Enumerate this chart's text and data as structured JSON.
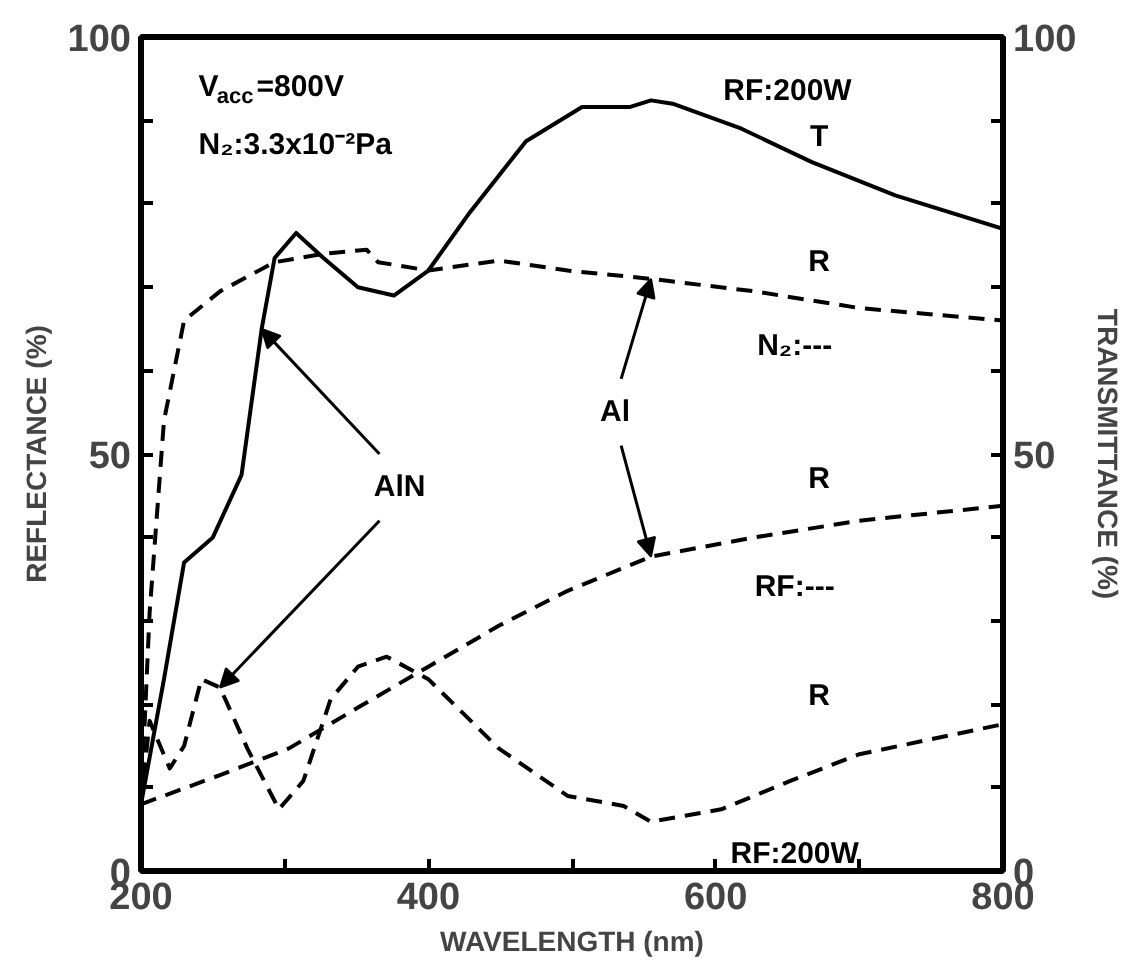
{
  "chart_data": {
    "type": "line",
    "xlabel": "WAVELENGTH (nm)",
    "ylabel": "REFLECTANCE (%)",
    "y2label": "TRANSMITTANCE (%)",
    "xlim": [
      200,
      800
    ],
    "ylim": [
      0,
      100
    ],
    "y2lim": [
      0,
      100
    ],
    "xticks": [
      200,
      {
        "value": 300,
        "label": null
      },
      400,
      {
        "value": 500,
        "label": null
      },
      600,
      {
        "value": 700,
        "label": null
      },
      800
    ],
    "yticks": [
      0,
      {
        "value": 10,
        "label": null
      },
      {
        "value": 20,
        "label": null
      },
      {
        "value": 30,
        "label": null
      },
      {
        "value": 40,
        "label": null
      },
      50,
      {
        "value": 60,
        "label": null
      },
      {
        "value": 70,
        "label": null
      },
      {
        "value": 80,
        "label": null
      },
      {
        "value": 90,
        "label": null
      },
      100
    ],
    "y2ticks": [
      0,
      {
        "value": 10,
        "label": null
      },
      {
        "value": 20,
        "label": null
      },
      {
        "value": 30,
        "label": null
      },
      {
        "value": 40,
        "label": null
      },
      50,
      {
        "value": 60,
        "label": null
      },
      {
        "value": 70,
        "label": null
      },
      {
        "value": 80,
        "label": null
      },
      {
        "value": 90,
        "label": null
      },
      100
    ],
    "grid": false,
    "marker": "none",
    "series": [
      {
        "color": "#000000",
        "line_style": "solid",
        "x": [
          200,
          216,
          230,
          250,
          270,
          284,
          293,
          308,
          327,
          351,
          376,
          400,
          429,
          468,
          507,
          540,
          555,
          570,
          618,
          667,
          725,
          800
        ],
        "values": [
          8,
          23,
          37,
          40,
          47.5,
          65,
          73.5,
          76.5,
          73.5,
          70,
          69,
          72,
          79,
          87.5,
          91.6,
          91.6,
          92.4,
          92,
          89,
          85,
          81,
          77
        ]
      },
      {
        "color": "#000000",
        "line_style": "dashed",
        "x": [
          200,
          206,
          216,
          230,
          255,
          293,
          327,
          357,
          365,
          400,
          449,
          497,
          555,
          627,
          700,
          800
        ],
        "values": [
          8,
          31,
          54,
          66,
          69.5,
          73,
          74,
          74.5,
          73,
          72,
          73.2,
          72,
          71,
          69.5,
          67.5,
          66
        ]
      },
      {
        "color": "#000000",
        "line_style": "dashed",
        "x": [
          200,
          255,
          303,
          351,
          400,
          449,
          497,
          555,
          627,
          700,
          800
        ],
        "values": [
          8,
          11.5,
          14.7,
          19.6,
          24.5,
          29.4,
          33.6,
          37.7,
          40,
          42,
          43.8
        ]
      },
      {
        "color": "#000000",
        "line_style": "dashed",
        "x": [
          200,
          206,
          220,
          230,
          242,
          255,
          274,
          296,
          313,
          332,
          351,
          371,
          400,
          449,
          497,
          536,
          555,
          604,
          652,
          700,
          800
        ],
        "values": [
          8,
          18,
          12.3,
          15,
          23,
          22,
          14.7,
          7.4,
          10.8,
          20.6,
          24.5,
          25.7,
          23,
          14.7,
          9,
          7.8,
          5.9,
          7.4,
          10.8,
          14,
          17.6
        ]
      }
    ],
    "annotations": [
      "V$_{acc}$=800V",
      "N₂:3.3x10⁻²Pa",
      "RF:200W",
      "T",
      "R",
      "N₂:---",
      "R",
      "RF:---",
      "R",
      "RF:200W",
      {
        "text": "AlN",
        "x": 284,
        "y": 65
      },
      {
        "text": "Al",
        "x": 555,
        "y": 71
      }
    ]
  }
}
